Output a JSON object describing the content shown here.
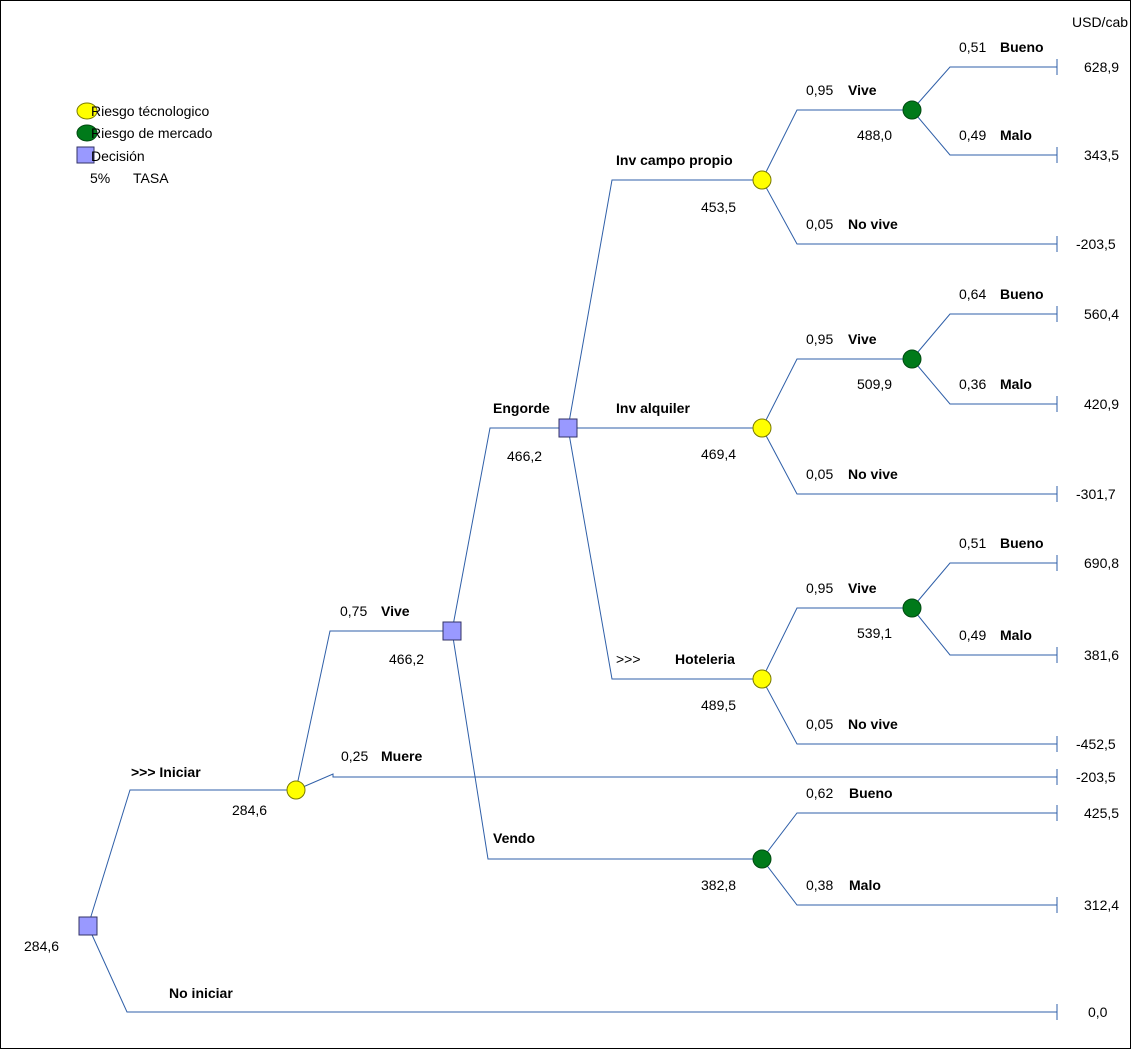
{
  "unit_label": "USD/cab",
  "legend": {
    "tech_risk": "Riesgo técnologico",
    "market_risk": "Riesgo de mercado",
    "decision": "Decisión",
    "rate_value": "5%",
    "rate_label": "TASA"
  },
  "colors": {
    "line": "#2f5fa8",
    "tech": "#ffff00",
    "market": "#007a1a",
    "decision": "#9999ff"
  },
  "root": {
    "value": "284,6"
  },
  "iniciar": {
    "label": ">>> Iniciar",
    "value": "284,6"
  },
  "no_iniciar": {
    "label": "No iniciar",
    "payoff": "0,0"
  },
  "vive": {
    "prob": "0,75",
    "label": "Vive",
    "value": "466,2"
  },
  "muere": {
    "prob": "0,25",
    "label": "Muere",
    "payoff": "-203,5"
  },
  "engorde": {
    "label": "Engorde",
    "value": "466,2"
  },
  "vendo": {
    "label": "Vendo",
    "value": "382,8",
    "bueno": {
      "prob": "0,62",
      "label": "Bueno",
      "payoff": "425,5"
    },
    "malo": {
      "prob": "0,38",
      "label": "Malo",
      "payoff": "312,4"
    }
  },
  "campo": {
    "label": "Inv campo propio",
    "value": "453,5",
    "vive": {
      "prob": "0,95",
      "label": "Vive",
      "value": "488,0"
    },
    "bueno": {
      "prob": "0,51",
      "label": "Bueno",
      "payoff": "628,9"
    },
    "malo": {
      "prob": "0,49",
      "label": "Malo",
      "payoff": "343,5"
    },
    "novive": {
      "prob": "0,05",
      "label": "No vive",
      "payoff": "-203,5"
    }
  },
  "alquiler": {
    "label": "Inv alquiler",
    "value": "469,4",
    "vive": {
      "prob": "0,95",
      "label": "Vive",
      "value": "509,9"
    },
    "bueno": {
      "prob": "0,64",
      "label": "Bueno",
      "payoff": "560,4"
    },
    "malo": {
      "prob": "0,36",
      "label": "Malo",
      "payoff": "420,9"
    },
    "novive": {
      "prob": "0,05",
      "label": "No vive",
      "payoff": "-301,7"
    }
  },
  "hoteleria": {
    "marker": ">>>",
    "label": "Hoteleria",
    "value": "489,5",
    "vive": {
      "prob": "0,95",
      "label": "Vive",
      "value": "539,1"
    },
    "bueno": {
      "prob": "0,51",
      "label": "Bueno",
      "payoff": "690,8"
    },
    "malo": {
      "prob": "0,49",
      "label": "Malo",
      "payoff": "381,6"
    },
    "novive": {
      "prob": "0,05",
      "label": "No vive",
      "payoff": "-452,5"
    }
  }
}
